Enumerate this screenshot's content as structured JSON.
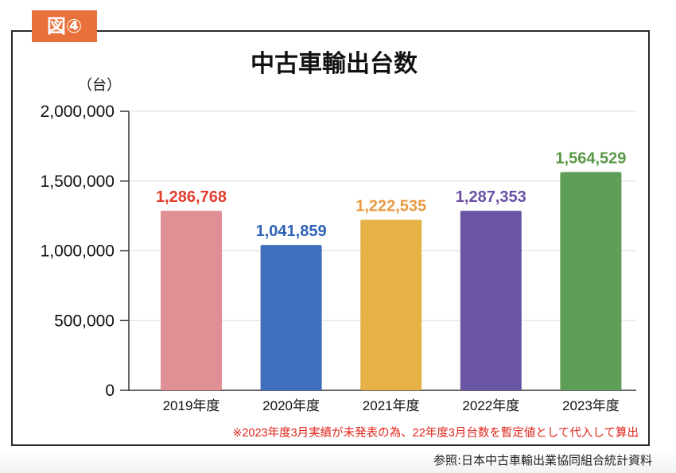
{
  "badge": "図④",
  "source": "参照:日本中古車輸出業協同組合統計資料",
  "colors": {
    "badge": "#e8703a",
    "note": "#e0241b",
    "axis": "#333333",
    "grid": "#dddddd"
  },
  "chart_data": {
    "type": "bar",
    "title": "中古車輸出台数",
    "ylabel": "（台）",
    "xlabel": "",
    "ylim": [
      0,
      2000000
    ],
    "yticks": [
      0,
      500000,
      1000000,
      1500000,
      2000000
    ],
    "ytick_labels": [
      "0",
      "500,000",
      "1,000,000",
      "1,500,000",
      "2,000,000"
    ],
    "grid": true,
    "categories": [
      "2019年度",
      "2020年度",
      "2021年度",
      "2022年度",
      "2023年度"
    ],
    "values": [
      1286768,
      1041859,
      1222535,
      1287353,
      1564529
    ],
    "value_labels": [
      "1,286,768",
      "1,041,859",
      "1,222,535",
      "1,287,353",
      "1,564,529"
    ],
    "bar_colors": [
      "#e08f94",
      "#3f6fbd",
      "#e6b248",
      "#6a55a4",
      "#5f9e58"
    ],
    "label_colors": [
      "#e23d2e",
      "#2f62b6",
      "#e89a42",
      "#6a4fa6",
      "#5a9848"
    ],
    "note": "※2023年度3月実績が未発表の為、22年度3月台数を暫定値として代入して算出"
  }
}
